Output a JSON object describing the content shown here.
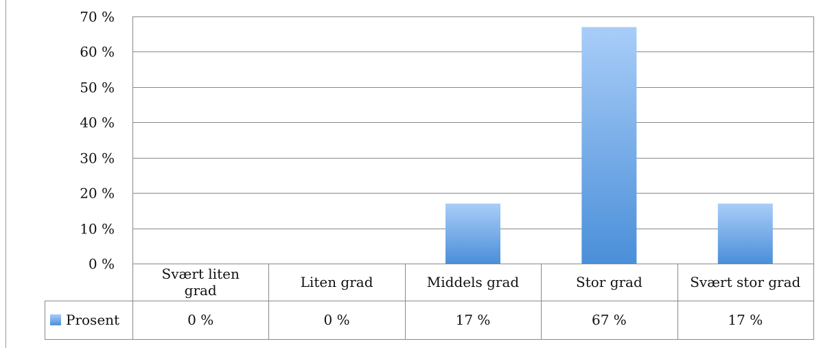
{
  "chart_data": {
    "type": "bar",
    "categories": [
      [
        "Svært liten",
        "grad"
      ],
      [
        "Liten grad"
      ],
      [
        "Middels grad"
      ],
      [
        "Stor grad"
      ],
      [
        "Svært stor grad"
      ]
    ],
    "series": [
      {
        "name": "Prosent",
        "values": [
          0,
          0,
          17,
          67,
          17
        ],
        "value_labels": [
          "0 %",
          "0 %",
          "17 %",
          "67 %",
          "17 %"
        ]
      }
    ],
    "ylim": [
      0,
      70
    ],
    "yticks": [
      {
        "value": 0,
        "label": "0 %"
      },
      {
        "value": 10,
        "label": "10 %"
      },
      {
        "value": 20,
        "label": "20 %"
      },
      {
        "value": 30,
        "label": "30 %"
      },
      {
        "value": 40,
        "label": "40 %"
      },
      {
        "value": 50,
        "label": "50 %"
      },
      {
        "value": 60,
        "label": "60 %"
      },
      {
        "value": 70,
        "label": "70 %"
      }
    ],
    "grid": true,
    "legend": "bottom-left (data table)",
    "colors": {
      "bar_top": "#a9cdf8",
      "bar_bottom": "#4a8fd9",
      "grid": "#888888",
      "text": "#111111"
    }
  }
}
